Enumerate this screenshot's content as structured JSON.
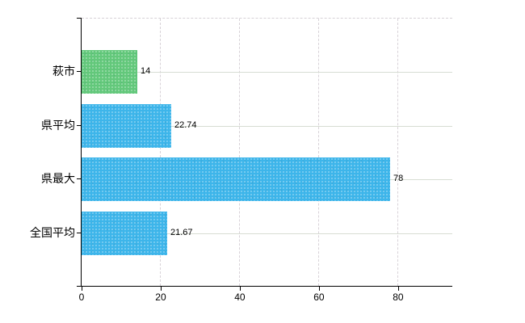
{
  "chart_data": {
    "type": "bar",
    "orientation": "horizontal",
    "title": "",
    "xlabel": "",
    "ylabel": "",
    "categories": [
      "萩市",
      "県平均",
      "県最大",
      "全国平均"
    ],
    "values": [
      14,
      22.74,
      78,
      21.67
    ],
    "value_labels": [
      "14",
      "22.74",
      "78",
      "21.67"
    ],
    "bar_colors": [
      "#63c87b",
      "#3db5ea",
      "#3db5ea",
      "#3db5ea"
    ],
    "xticks": [
      "0",
      "20",
      "40",
      "60",
      "80"
    ],
    "xtick_values": [
      0,
      20,
      40,
      60,
      80
    ],
    "xlim": [
      0,
      93.7
    ],
    "grid": {
      "vertical": "dashed",
      "horizontal": "solid-through-row-centers",
      "top_border": "dashed"
    },
    "legend": "none"
  },
  "colors": {
    "background": "#ffffff",
    "axis": "#000000",
    "text": "#000000",
    "gridline_horizontal": "#d7ddd3",
    "gridline_vertical": "#d8d2d8",
    "bar_green": "#63c87b",
    "bar_blue": "#3db5ea"
  }
}
